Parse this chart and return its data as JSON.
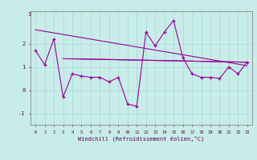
{
  "x": [
    0,
    1,
    2,
    3,
    4,
    5,
    6,
    7,
    8,
    9,
    10,
    11,
    12,
    13,
    14,
    15,
    16,
    17,
    18,
    19,
    20,
    21,
    22,
    23
  ],
  "windchill": [
    1.7,
    1.1,
    2.2,
    -0.3,
    0.7,
    0.6,
    0.55,
    0.55,
    0.35,
    0.55,
    -0.6,
    -0.7,
    2.5,
    1.9,
    2.5,
    3.0,
    1.4,
    0.7,
    0.55,
    0.55,
    0.5,
    1.0,
    0.7,
    1.2
  ],
  "trend1_x": [
    0,
    23
  ],
  "trend1_y": [
    2.6,
    1.05
  ],
  "trend2_x": [
    3,
    23
  ],
  "trend2_y": [
    1.35,
    1.2
  ],
  "trend3_x": [
    4,
    23
  ],
  "trend3_y": [
    1.35,
    1.2
  ],
  "bg_color": "#c8ece8",
  "line_color": "#990099",
  "grid_color": "#aadddd",
  "xlabel": "Windchill (Refroidissement éolien,°C)",
  "ytop_label": "3",
  "ylim": [
    -1.5,
    3.4
  ],
  "xlim": [
    -0.5,
    23.5
  ],
  "yticks": [
    -1,
    0,
    1,
    2
  ],
  "ytick_labels": [
    "-1",
    "0",
    "1",
    "2"
  ]
}
